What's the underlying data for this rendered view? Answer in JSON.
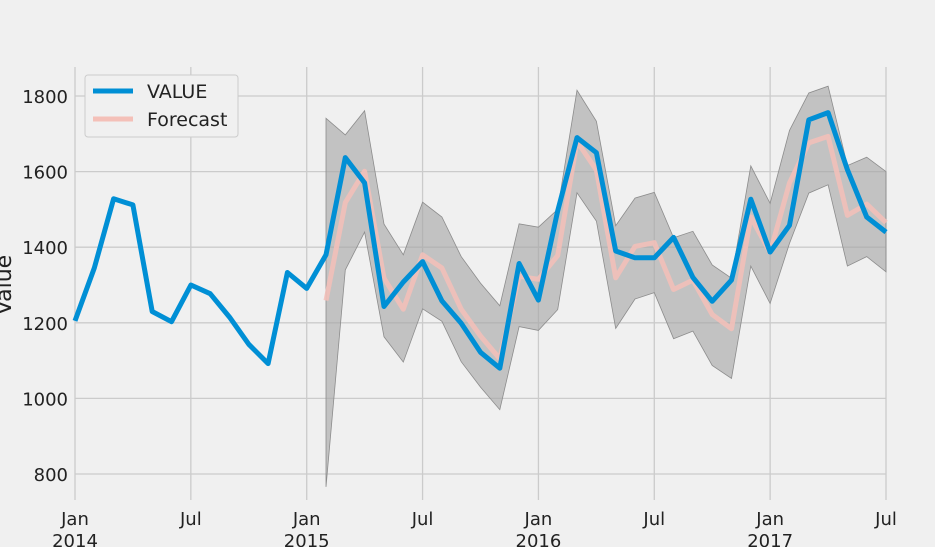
{
  "chart_data": {
    "type": "line",
    "title": "",
    "xlabel": "",
    "ylabel": "Value",
    "ylim": [
      750,
      1870
    ],
    "grid": true,
    "legend_placement": "top-left",
    "x_ticks": [
      {
        "date": "2014-01",
        "label": [
          "Jan",
          "2014"
        ]
      },
      {
        "date": "2014-07",
        "label": [
          "Jul"
        ]
      },
      {
        "date": "2015-01",
        "label": [
          "Jan",
          "2015"
        ]
      },
      {
        "date": "2015-07",
        "label": [
          "Jul"
        ]
      },
      {
        "date": "2016-01",
        "label": [
          "Jan",
          "2016"
        ]
      },
      {
        "date": "2016-07",
        "label": [
          "Jul"
        ]
      },
      {
        "date": "2017-01",
        "label": [
          "Jan",
          "2017"
        ]
      },
      {
        "date": "2017-07",
        "label": [
          "Jul"
        ]
      }
    ],
    "y_ticks": [
      800,
      1000,
      1200,
      1400,
      1600,
      1800
    ],
    "colors": {
      "value": "#008fd5",
      "forecast": "#f4c0b8",
      "confidence_band": "#a6a6a6",
      "grid": "#cbcbcb",
      "background": "#f0f0f0"
    },
    "series": [
      {
        "name": "VALUE",
        "x": [
          "2014-01",
          "2014-02",
          "2014-03",
          "2014-04",
          "2014-05",
          "2014-06",
          "2014-07",
          "2014-08",
          "2014-09",
          "2014-10",
          "2014-11",
          "2014-12",
          "2015-01",
          "2015-02",
          "2015-03",
          "2015-04",
          "2015-05",
          "2015-06",
          "2015-07",
          "2015-08",
          "2015-09",
          "2015-10",
          "2015-11",
          "2015-12",
          "2016-01",
          "2016-02",
          "2016-03",
          "2016-04",
          "2016-05",
          "2016-06",
          "2016-07",
          "2016-08",
          "2016-09",
          "2016-10",
          "2016-11",
          "2016-12",
          "2017-01",
          "2017-02",
          "2017-03",
          "2017-04",
          "2017-05",
          "2017-06",
          "2017-07"
        ],
        "values": [
          1205,
          1345,
          1528,
          1512,
          1230,
          1203,
          1300,
          1277,
          1215,
          1143,
          1092,
          1333,
          1291,
          1380,
          1637,
          1570,
          1243,
          1308,
          1362,
          1258,
          1199,
          1122,
          1080,
          1357,
          1260,
          1496,
          1690,
          1650,
          1390,
          1372,
          1372,
          1426,
          1320,
          1257,
          1313,
          1527,
          1387,
          1458,
          1737,
          1756,
          1605,
          1480,
          1440
        ]
      },
      {
        "name": "Forecast",
        "x": [
          "2015-02",
          "2015-03",
          "2015-04",
          "2015-05",
          "2015-06",
          "2015-07",
          "2015-08",
          "2015-09",
          "2015-10",
          "2015-11",
          "2015-12",
          "2016-01",
          "2016-02",
          "2016-03",
          "2016-04",
          "2016-05",
          "2016-06",
          "2016-07",
          "2016-08",
          "2016-09",
          "2016-10",
          "2016-11",
          "2016-12",
          "2017-01",
          "2017-02",
          "2017-03",
          "2017-04",
          "2017-05",
          "2017-06",
          "2017-07"
        ],
        "values": [
          1259,
          1518,
          1601,
          1318,
          1236,
          1380,
          1345,
          1236,
          1165,
          1105,
          1323,
          1315,
          1378,
          1680,
          1604,
          1319,
          1402,
          1412,
          1288,
          1313,
          1222,
          1184,
          1480,
          1386,
          1570,
          1676,
          1693,
          1484,
          1514,
          1465
        ],
        "lower": [
          766,
          1340,
          1440,
          1163,
          1096,
          1237,
          1204,
          1097,
          1030,
          970,
          1190,
          1180,
          1235,
          1544,
          1469,
          1185,
          1263,
          1280,
          1158,
          1178,
          1087,
          1053,
          1350,
          1251,
          1410,
          1543,
          1565,
          1350,
          1375,
          1335
        ],
        "upper": [
          1741,
          1697,
          1761,
          1461,
          1380,
          1519,
          1480,
          1375,
          1305,
          1245,
          1462,
          1453,
          1500,
          1815,
          1733,
          1457,
          1530,
          1545,
          1425,
          1442,
          1353,
          1318,
          1615,
          1516,
          1709,
          1808,
          1826,
          1616,
          1638,
          1600
        ]
      }
    ]
  }
}
